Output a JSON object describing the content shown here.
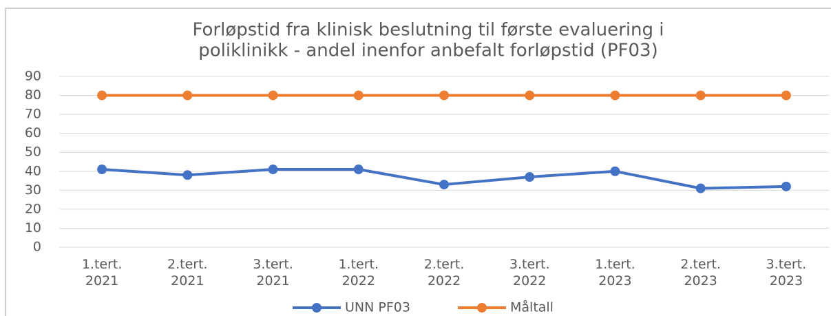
{
  "chart_data": {
    "type": "line",
    "title": [
      "Forløpstid fra klinisk beslutning til første evaluering i",
      "poliklinikk  - andel inenfor anbefalt forløpstid (PF03)"
    ],
    "categories": [
      "1.tert. 2021",
      "2.tert. 2021",
      "3.tert. 2021",
      "1.tert. 2022",
      "2.tert. 2022",
      "3.tert. 2022",
      "1.tert. 2023",
      "2.tert. 2023",
      "3.tert. 2023"
    ],
    "series": [
      {
        "name": "UNN PF03",
        "color": "#4472c4",
        "values": [
          41,
          38,
          41,
          41,
          33,
          37,
          40,
          31,
          32
        ]
      },
      {
        "name": "Måltall",
        "color": "#ed7d31",
        "values": [
          80,
          80,
          80,
          80,
          80,
          80,
          80,
          80,
          80
        ]
      }
    ],
    "ylim": [
      0,
      90
    ],
    "yticks": [
      0,
      10,
      20,
      30,
      40,
      50,
      60,
      70,
      80,
      90
    ],
    "grid": true,
    "legend": "bottom"
  }
}
